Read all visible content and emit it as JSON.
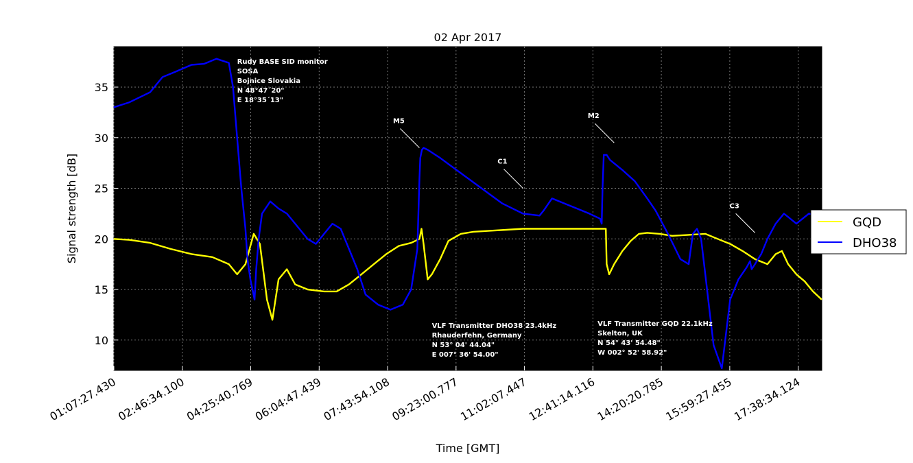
{
  "chart_data": {
    "type": "line",
    "title": "02 Apr 2017",
    "xlabel": "Time [GMT]",
    "ylabel": "Signal strength [dB]",
    "x_unit": "hours GMT",
    "xlim": [
      1.1243,
      18.2119
    ],
    "ylim": [
      7,
      39
    ],
    "y_ticks": [
      10,
      15,
      20,
      25,
      30,
      35
    ],
    "x_ticks": [
      {
        "value": 1.1243,
        "label": "01:07:27.430"
      },
      {
        "value": 2.7762,
        "label": "02:46:34.100"
      },
      {
        "value": 4.428,
        "label": "04:25:40.769"
      },
      {
        "value": 6.0799,
        "label": "06:04:47.439"
      },
      {
        "value": 7.7317,
        "label": "07:43:54.108"
      },
      {
        "value": 9.3836,
        "label": "09:23:00.777"
      },
      {
        "value": 11.0354,
        "label": "11:02:07.447"
      },
      {
        "value": 12.6873,
        "label": "12:41:14.116"
      },
      {
        "value": 14.3391,
        "label": "14:20:20.785"
      },
      {
        "value": 15.991,
        "label": "15:59:27.455"
      },
      {
        "value": 17.6429,
        "label": "17:38:34.124"
      }
    ],
    "grid": true,
    "background": "#000000",
    "legend_position": "right",
    "series": [
      {
        "name": "GQD",
        "color": "#ffff00",
        "x": [
          1.12,
          1.5,
          2.0,
          2.5,
          3.0,
          3.5,
          3.9,
          4.1,
          4.3,
          4.5,
          4.65,
          4.82,
          4.95,
          5.1,
          5.3,
          5.5,
          5.8,
          6.2,
          6.5,
          6.8,
          7.1,
          7.4,
          7.7,
          8.0,
          8.3,
          8.5,
          8.55,
          8.6,
          8.7,
          8.8,
          9.0,
          9.2,
          9.5,
          9.8,
          10.2,
          10.6,
          11.0,
          11.5,
          12.0,
          12.5,
          12.8,
          13.0,
          13.02,
          13.08,
          13.2,
          13.4,
          13.6,
          13.8,
          14.0,
          14.3,
          14.6,
          15.0,
          15.4,
          15.7,
          16.0,
          16.3,
          16.6,
          16.9,
          17.1,
          17.25,
          17.4,
          17.6,
          17.8,
          18.0,
          18.21
        ],
        "y": [
          20.0,
          19.9,
          19.6,
          19.0,
          18.5,
          18.2,
          17.5,
          16.5,
          17.5,
          20.5,
          19.5,
          14.0,
          12.0,
          16.0,
          17.0,
          15.5,
          15.0,
          14.8,
          14.8,
          15.5,
          16.5,
          17.5,
          18.5,
          19.3,
          19.6,
          20.0,
          21.0,
          19.5,
          16.0,
          16.5,
          18.0,
          19.8,
          20.5,
          20.7,
          20.8,
          20.9,
          21.0,
          21.0,
          21.0,
          21.0,
          21.0,
          21.0,
          17.5,
          16.5,
          17.5,
          18.8,
          19.8,
          20.5,
          20.6,
          20.5,
          20.3,
          20.4,
          20.5,
          20.0,
          19.5,
          18.8,
          18.0,
          17.5,
          18.5,
          18.8,
          17.5,
          16.5,
          15.8,
          14.8,
          14.0
        ]
      },
      {
        "name": "DHO38",
        "color": "#0000ff",
        "x": [
          1.12,
          1.5,
          2.0,
          2.3,
          2.6,
          3.0,
          3.3,
          3.6,
          3.9,
          4.0,
          4.1,
          4.2,
          4.3,
          4.35,
          4.42,
          4.47,
          4.52,
          4.56,
          4.62,
          4.7,
          4.9,
          5.1,
          5.3,
          5.5,
          5.8,
          6.0,
          6.2,
          6.4,
          6.6,
          6.8,
          7.0,
          7.2,
          7.5,
          7.8,
          8.1,
          8.3,
          8.45,
          8.5,
          8.52,
          8.56,
          8.6,
          8.7,
          9.0,
          9.5,
          10.0,
          10.5,
          11.0,
          11.4,
          11.5,
          11.7,
          12.0,
          12.3,
          12.6,
          12.86,
          12.9,
          12.92,
          12.95,
          13.02,
          13.1,
          13.4,
          13.7,
          14.0,
          14.2,
          14.5,
          14.8,
          15.0,
          15.1,
          15.2,
          15.3,
          15.4,
          15.5,
          15.6,
          15.8,
          16.0,
          16.2,
          16.4,
          16.48,
          16.52,
          16.6,
          16.75,
          16.9,
          17.1,
          17.3,
          17.6,
          17.9,
          18.1,
          18.2
        ],
        "y": [
          33.0,
          33.5,
          34.5,
          36.0,
          36.5,
          37.2,
          37.3,
          37.8,
          37.4,
          35.0,
          30.0,
          25.0,
          21.0,
          18.0,
          16.0,
          15.0,
          14.0,
          17.0,
          20.0,
          22.5,
          23.7,
          23.0,
          22.5,
          21.5,
          20.0,
          19.5,
          20.5,
          21.5,
          21.0,
          19.0,
          17.0,
          14.5,
          13.5,
          13.0,
          13.5,
          15.0,
          19.0,
          26.0,
          28.0,
          28.8,
          29.0,
          28.8,
          28.0,
          26.5,
          25.0,
          23.5,
          22.5,
          22.3,
          22.8,
          24.0,
          23.5,
          23.0,
          22.5,
          22.0,
          21.5,
          25.0,
          28.3,
          28.3,
          27.8,
          26.8,
          25.7,
          24.0,
          22.8,
          20.5,
          18.0,
          17.5,
          20.5,
          21.0,
          20.0,
          16.5,
          13.0,
          9.5,
          7.2,
          14.0,
          16.0,
          17.2,
          17.8,
          17.0,
          17.5,
          18.5,
          20.0,
          21.5,
          22.5,
          21.5,
          22.5,
          22.3,
          22.0
        ]
      }
    ],
    "annotations": [
      {
        "label": "M5",
        "x": 8.5,
        "y": 29.0
      },
      {
        "label": "C1",
        "x": 11.0,
        "y": 25.0
      },
      {
        "label": "M2",
        "x": 13.2,
        "y": 29.5
      },
      {
        "label": "C3",
        "x": 16.6,
        "y": 20.6
      }
    ],
    "text_boxes": [
      {
        "lines": [
          "Rudy BASE SID monitor",
          "SOSA",
          "Bojnice Slovakia",
          "N 48°47´20\"",
          "E 18°35´13\""
        ],
        "x": 4.1,
        "y": 37.3
      },
      {
        "lines": [
          "VLF Transmitter DHO38 23.4kHz",
          "Rhauderfehn, Germany",
          "N 53° 04' 44.04\"",
          "E 007° 36' 54.00\""
        ],
        "x": 8.8,
        "y": 11.2
      },
      {
        "lines": [
          "VLF Transmitter GQD 22.1kHz",
          "Skelton, UK",
          "N 54° 43' 54.48\"",
          "W 002° 52' 58.92\""
        ],
        "x": 12.8,
        "y": 11.4
      }
    ]
  }
}
